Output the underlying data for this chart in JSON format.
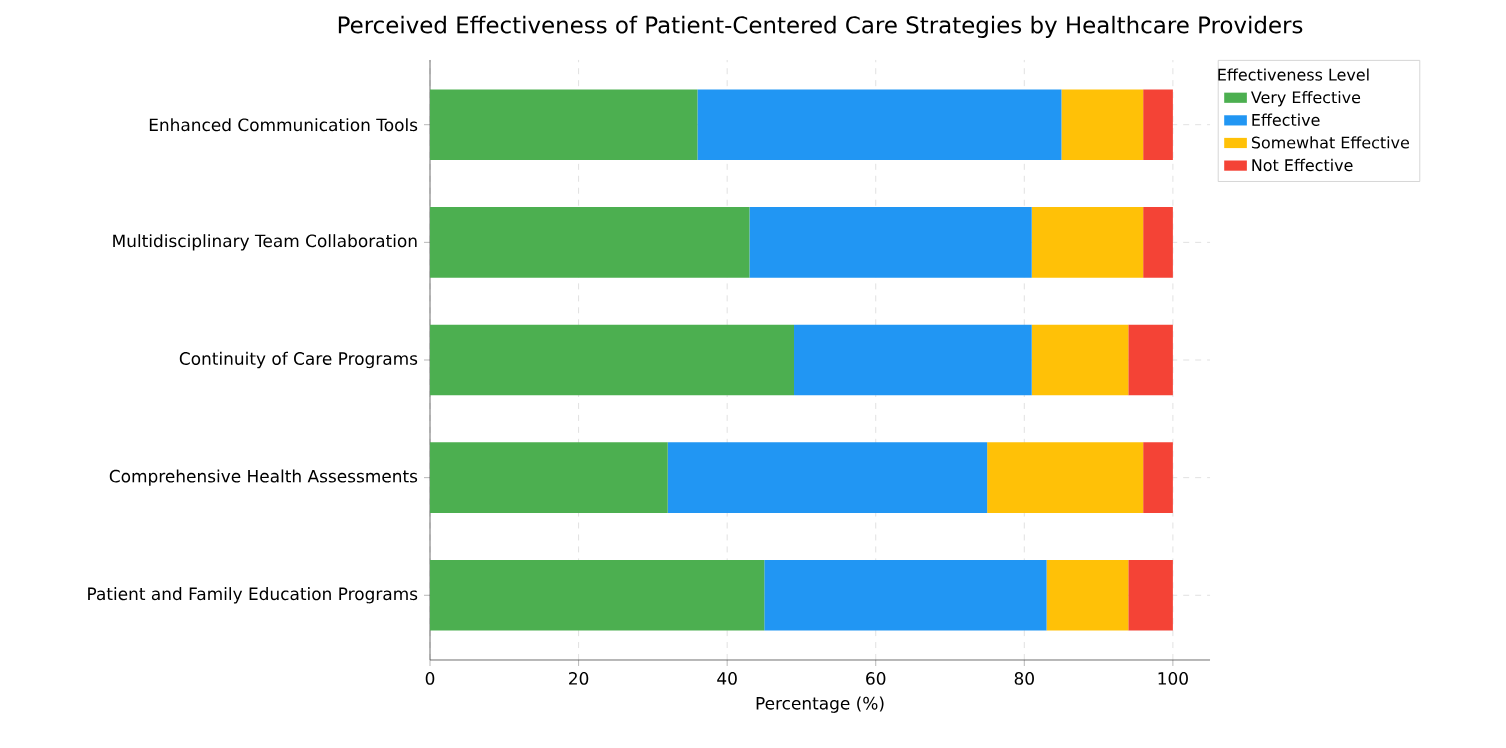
{
  "chart_data": {
    "type": "bar",
    "orientation": "horizontal",
    "stacked": true,
    "title": "Perceived Effectiveness of Patient-Centered Care Strategies by Healthcare Providers",
    "xlabel": "Percentage (%)",
    "legend_title": "Effectiveness Level",
    "categories": [
      "Enhanced Communication Tools",
      "Multidisciplinary Team Collaboration",
      "Continuity of Care Programs",
      "Comprehensive Health Assessments",
      "Patient and Family Education Programs"
    ],
    "series": [
      {
        "name": "Very Effective",
        "color": "#4caf50",
        "values": [
          36,
          43,
          49,
          32,
          45
        ]
      },
      {
        "name": "Effective",
        "color": "#2196f3",
        "values": [
          49,
          38,
          32,
          43,
          38
        ]
      },
      {
        "name": "Somewhat Effective",
        "color": "#ffc107",
        "values": [
          11,
          15,
          13,
          21,
          11
        ]
      },
      {
        "name": "Not Effective",
        "color": "#f44336",
        "values": [
          4,
          4,
          6,
          4,
          6
        ]
      }
    ],
    "xlim": [
      0,
      105
    ],
    "xticks": [
      0,
      20,
      40,
      60,
      80,
      100
    ],
    "grid": true,
    "legend": "top right"
  }
}
